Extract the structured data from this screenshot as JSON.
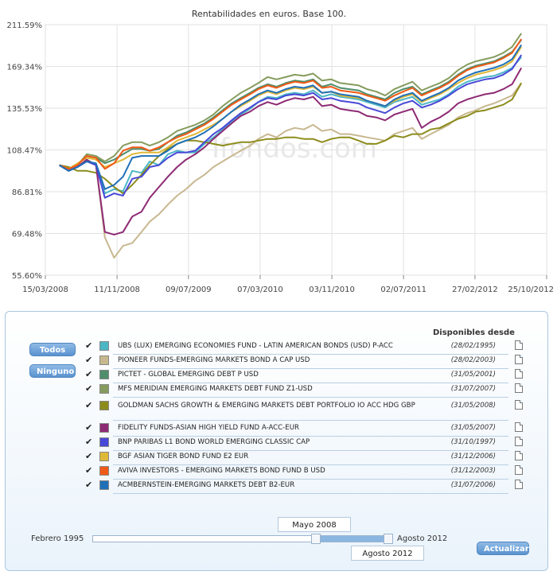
{
  "chart_data": {
    "type": "line",
    "title": "Rentabilidades en euros. Base 100.",
    "y_scale": "log",
    "ylim": [
      55.6,
      211.59
    ],
    "yticks": [
      "211.59%",
      "169.34%",
      "135.53%",
      "108.47%",
      "86.81%",
      "69.48%",
      "55.60%"
    ],
    "ytick_values": [
      211.59,
      169.34,
      135.53,
      108.47,
      86.81,
      69.48,
      55.6
    ],
    "xlim": [
      "2008-03-15",
      "2012-10-25"
    ],
    "xticks": [
      "15/03/2008",
      "11/11/2008",
      "09/07/2009",
      "07/03/2010",
      "03/11/2010",
      "02/07/2011",
      "27/02/2012",
      "25/10/2012"
    ],
    "xtick_dates": [
      "2008-03-15",
      "2008-11-11",
      "2009-07-09",
      "2010-03-07",
      "2010-11-03",
      "2011-07-02",
      "2012-02-27",
      "2012-10-25"
    ],
    "grid": true,
    "watermark": "Ifondos.com",
    "dates": [
      "2008-05-01",
      "2008-06-01",
      "2008-07-01",
      "2008-08-01",
      "2008-09-01",
      "2008-10-01",
      "2008-11-01",
      "2008-12-01",
      "2009-01-01",
      "2009-02-01",
      "2009-03-01",
      "2009-04-01",
      "2009-05-01",
      "2009-06-01",
      "2009-07-01",
      "2009-08-01",
      "2009-09-01",
      "2009-10-01",
      "2009-11-01",
      "2009-12-01",
      "2010-01-01",
      "2010-02-01",
      "2010-03-01",
      "2010-04-01",
      "2010-05-01",
      "2010-06-01",
      "2010-07-01",
      "2010-08-01",
      "2010-09-01",
      "2010-10-01",
      "2010-11-01",
      "2010-12-01",
      "2011-01-01",
      "2011-02-01",
      "2011-03-01",
      "2011-04-01",
      "2011-05-01",
      "2011-06-01",
      "2011-07-01",
      "2011-08-01",
      "2011-09-01",
      "2011-10-01",
      "2011-11-01",
      "2011-12-01",
      "2012-01-01",
      "2012-02-01",
      "2012-03-01",
      "2012-04-01",
      "2012-05-01",
      "2012-06-01",
      "2012-07-01",
      "2012-08-01"
    ],
    "series": [
      {
        "name": "UBS (LUX) EMERGING ECONOMIES FUND - LATIN AMERICAN BONDS (USD) P-ACC",
        "color": "#4cb6c6",
        "values": [
          100,
          97,
          99,
          103,
          100,
          86,
          88,
          87,
          97,
          96,
          102,
          100,
          106,
          108,
          107,
          107,
          112,
          116,
          121,
          126,
          131,
          135,
          140,
          144,
          143,
          146,
          147,
          146,
          149,
          144,
          146,
          144,
          143,
          142,
          140,
          138,
          136,
          140,
          142,
          144,
          138,
          140,
          142,
          146,
          152,
          156,
          158,
          160,
          161,
          164,
          168,
          178
        ]
      },
      {
        "name": "PIONEER FUNDS-EMERGING MARKETS BOND A CAP USD",
        "color": "#c8b890",
        "values": [
          100,
          97,
          99,
          102,
          100,
          68,
          61,
          65,
          66,
          70,
          74,
          77,
          81,
          85,
          88,
          92,
          95,
          99,
          102,
          105,
          108,
          111,
          115,
          118,
          116,
          120,
          122,
          121,
          124,
          120,
          121,
          118,
          118,
          117,
          116,
          115,
          114,
          118,
          120,
          122,
          115,
          118,
          121,
          124,
          129,
          132,
          134,
          137,
          139,
          142,
          145,
          155
        ]
      },
      {
        "name": "PICTET - GLOBAL EMERGING DEBT P USD",
        "color": "#4e8e6a",
        "values": [
          100,
          98,
          100,
          105,
          104,
          101,
          103,
          106,
          109,
          109,
          108,
          109,
          113,
          117,
          119,
          122,
          125,
          129,
          134,
          139,
          143,
          147,
          151,
          154,
          152,
          155,
          157,
          156,
          158,
          152,
          154,
          151,
          150,
          149,
          146,
          144,
          142,
          147,
          150,
          152,
          146,
          149,
          152,
          156,
          162,
          167,
          170,
          172,
          174,
          178,
          183,
          195
        ]
      },
      {
        "name": "MFS MERIDIAN EMERGING MARKETS DEBT FUND Z1-USD",
        "color": "#869c5e",
        "values": [
          100,
          98,
          100,
          106,
          105,
          102,
          105,
          111,
          113,
          113,
          111,
          113,
          116,
          120,
          122,
          124,
          127,
          131,
          137,
          142,
          147,
          151,
          155,
          160,
          158,
          160,
          162,
          161,
          163,
          157,
          158,
          155,
          154,
          153,
          150,
          148,
          145,
          150,
          153,
          156,
          149,
          152,
          155,
          159,
          166,
          171,
          174,
          176,
          178,
          182,
          188,
          202
        ]
      },
      {
        "name": "GOLDMAN SACHS GROWTH & EMERGING MARKETS DEBT PORTFOLIO IO ACC HDG GBP",
        "color": "#8c8c1c",
        "values": [
          100,
          99,
          97,
          97,
          96,
          93,
          89,
          86,
          90,
          95,
          100,
          105,
          109,
          112,
          114,
          114,
          113,
          112,
          111,
          112,
          113,
          113,
          114,
          115,
          115,
          116,
          116,
          115,
          115,
          113,
          115,
          116,
          116,
          114,
          112,
          112,
          114,
          117,
          116,
          118,
          118,
          121,
          122,
          125,
          128,
          130,
          133,
          134,
          136,
          138,
          142,
          155
        ]
      },
      {
        "name": "FIDELITY FUNDS-ASIAN HIGH YIELD FUND A-ACC-EUR",
        "color": "#8e2a74",
        "values": [
          100,
          97,
          99,
          103,
          100,
          70,
          69,
          70,
          76,
          78,
          84,
          89,
          94,
          99,
          103,
          106,
          110,
          115,
          120,
          125,
          130,
          133,
          137,
          140,
          138,
          141,
          143,
          142,
          144,
          137,
          138,
          135,
          134,
          133,
          130,
          129,
          127,
          131,
          133,
          135,
          122,
          126,
          129,
          133,
          139,
          142,
          144,
          146,
          147,
          150,
          154,
          168
        ]
      },
      {
        "name": "BNP PARIBAS L1 BOND WORLD EMERGING CLASSIC CAP",
        "color": "#4848d8",
        "values": [
          100,
          97,
          99,
          102,
          100,
          84,
          86,
          85,
          93,
          94,
          99,
          100,
          104,
          107,
          107,
          108,
          113,
          118,
          122,
          127,
          132,
          136,
          140,
          143,
          142,
          145,
          146,
          145,
          147,
          142,
          143,
          141,
          140,
          139,
          136,
          134,
          132,
          136,
          139,
          141,
          136,
          138,
          141,
          145,
          150,
          154,
          156,
          158,
          159,
          162,
          167,
          180
        ]
      },
      {
        "name": "BGF ASIAN TIGER BOND FUND E2 EUR",
        "color": "#e0b838",
        "values": [
          100,
          98,
          101,
          104,
          103,
          99,
          101,
          103,
          106,
          107,
          107,
          107,
          110,
          114,
          116,
          118,
          121,
          124,
          128,
          133,
          137,
          141,
          145,
          148,
          146,
          149,
          151,
          150,
          152,
          147,
          148,
          145,
          144,
          143,
          141,
          139,
          137,
          141,
          144,
          146,
          140,
          143,
          146,
          150,
          155,
          159,
          162,
          164,
          166,
          169,
          174,
          188
        ]
      },
      {
        "name": "AVIVA INVESTORS - EMERGING MARKETS BOND FUND B USD",
        "color": "#f05a18",
        "values": [
          100,
          98,
          100,
          105,
          104,
          98,
          101,
          108,
          110,
          110,
          108,
          110,
          113,
          116,
          118,
          121,
          124,
          128,
          133,
          138,
          142,
          146,
          150,
          153,
          151,
          154,
          156,
          155,
          157,
          151,
          152,
          149,
          148,
          147,
          145,
          143,
          141,
          145,
          148,
          151,
          145,
          148,
          151,
          155,
          161,
          166,
          169,
          171,
          173,
          177,
          182,
          196
        ]
      },
      {
        "name": "ACMBERNSTEIN-EMERGING MARKETS DEBT B2-EUR",
        "color": "#2070b8",
        "values": [
          100,
          97,
          99,
          102,
          101,
          88,
          90,
          94,
          104,
          105,
          105,
          105,
          108,
          112,
          114,
          116,
          119,
          123,
          128,
          133,
          138,
          142,
          146,
          149,
          147,
          150,
          152,
          151,
          153,
          147,
          148,
          146,
          145,
          144,
          141,
          139,
          137,
          142,
          145,
          147,
          141,
          144,
          147,
          151,
          157,
          161,
          164,
          166,
          168,
          171,
          176,
          190
        ]
      }
    ]
  },
  "panel": {
    "btn_all": "Todos",
    "btn_none": "Ninguno",
    "available_header": "Disponibles desde",
    "funds": [
      {
        "name": "UBS (LUX) EMERGING ECONOMIES FUND - LATIN AMERICAN BONDS (USD) P-ACC",
        "date": "(28/02/1995)",
        "color": "#4cb6c6",
        "checked": "✔"
      },
      {
        "name": "PIONEER FUNDS-EMERGING MARKETS BOND A CAP USD",
        "date": "(28/02/2003)",
        "color": "#c8b890",
        "checked": "✔"
      },
      {
        "name": "PICTET - GLOBAL EMERGING DEBT P USD",
        "date": "(31/05/2001)",
        "color": "#4e8e6a",
        "checked": "✔"
      },
      {
        "name": "MFS MERIDIAN EMERGING MARKETS DEBT FUND Z1-USD",
        "date": "(31/07/2007)",
        "color": "#869c5e",
        "checked": "✔"
      },
      {
        "name": "GOLDMAN SACHS GROWTH & EMERGING MARKETS DEBT PORTFOLIO IO ACC HDG GBP",
        "date": "(31/05/2008)",
        "color": "#8c8c1c",
        "checked": "✔"
      },
      {
        "name": "FIDELITY FUNDS-ASIAN HIGH YIELD FUND A-ACC-EUR",
        "date": "(31/05/2007)",
        "color": "#8e2a74",
        "checked": "✔"
      },
      {
        "name": "BNP PARIBAS L1 BOND WORLD EMERGING CLASSIC CAP",
        "date": "(31/10/1997)",
        "color": "#4848d8",
        "checked": "✔"
      },
      {
        "name": "BGF ASIAN TIGER BOND FUND E2 EUR",
        "date": "(31/12/2006)",
        "color": "#e0b838",
        "checked": "✔"
      },
      {
        "name": "AVIVA INVESTORS - EMERGING MARKETS BOND FUND B USD",
        "date": "(31/12/2003)",
        "color": "#f05a18",
        "checked": "✔"
      },
      {
        "name": "ACMBERNSTEIN-EMERGING MARKETS DEBT B2-EUR",
        "date": "(31/07/2006)",
        "color": "#2070b8",
        "checked": "✔"
      }
    ],
    "slider": {
      "min_label": "Febrero 1995",
      "max_label": "Agosto 2012",
      "from_value": "Mayo 2008",
      "to_value": "Agosto 2012"
    },
    "btn_update": "Actualizar"
  }
}
